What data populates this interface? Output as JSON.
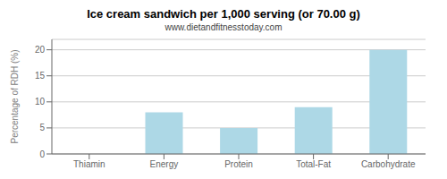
{
  "chart_data": {
    "type": "bar",
    "title": "Ice cream sandwich per 1,000 serving (or 70.00 g)",
    "subtitle": "www.dietandfitnesstoday.com",
    "categories": [
      "Thiamin",
      "Energy",
      "Protein",
      "Total-Fat",
      "Carbohydrate"
    ],
    "values": [
      0,
      8,
      5,
      9,
      20
    ],
    "color": "#add8e6",
    "ylabel": "Percentage of RDH (%)",
    "ylim": [
      0,
      22
    ],
    "yticks": [
      0,
      5,
      10,
      15,
      20
    ],
    "grid": true
  }
}
